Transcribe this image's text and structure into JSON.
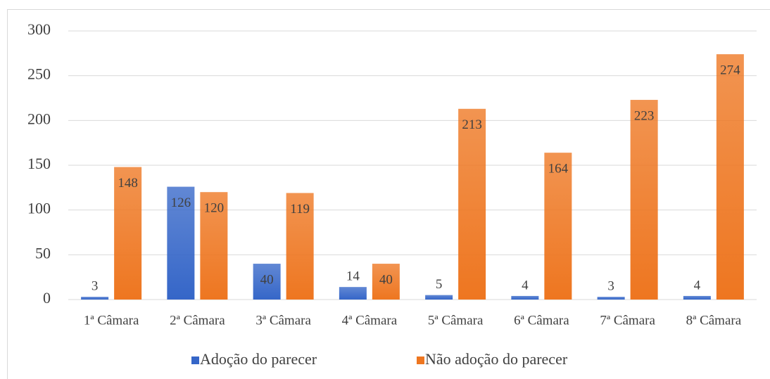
{
  "chart_data": {
    "type": "bar",
    "categories": [
      "1ª Câmara",
      "2ª Câmara",
      "3ª Câmara",
      "4ª Câmara",
      "5ª Câmara",
      "6ª Câmara",
      "7ª Câmara",
      "8ª Câmara"
    ],
    "series": [
      {
        "name": "Adoção do parecer",
        "color": "#3566c8",
        "values": [
          3,
          126,
          40,
          14,
          5,
          4,
          3,
          4
        ]
      },
      {
        "name": "Não adoção do parecer",
        "color": "#ee7620",
        "values": [
          148,
          120,
          119,
          40,
          213,
          164,
          223,
          274
        ]
      }
    ],
    "ylim": [
      0,
      300
    ],
    "yticks": [
      0,
      50,
      100,
      150,
      200,
      250,
      300
    ],
    "grid": true,
    "legend": "bottom"
  }
}
